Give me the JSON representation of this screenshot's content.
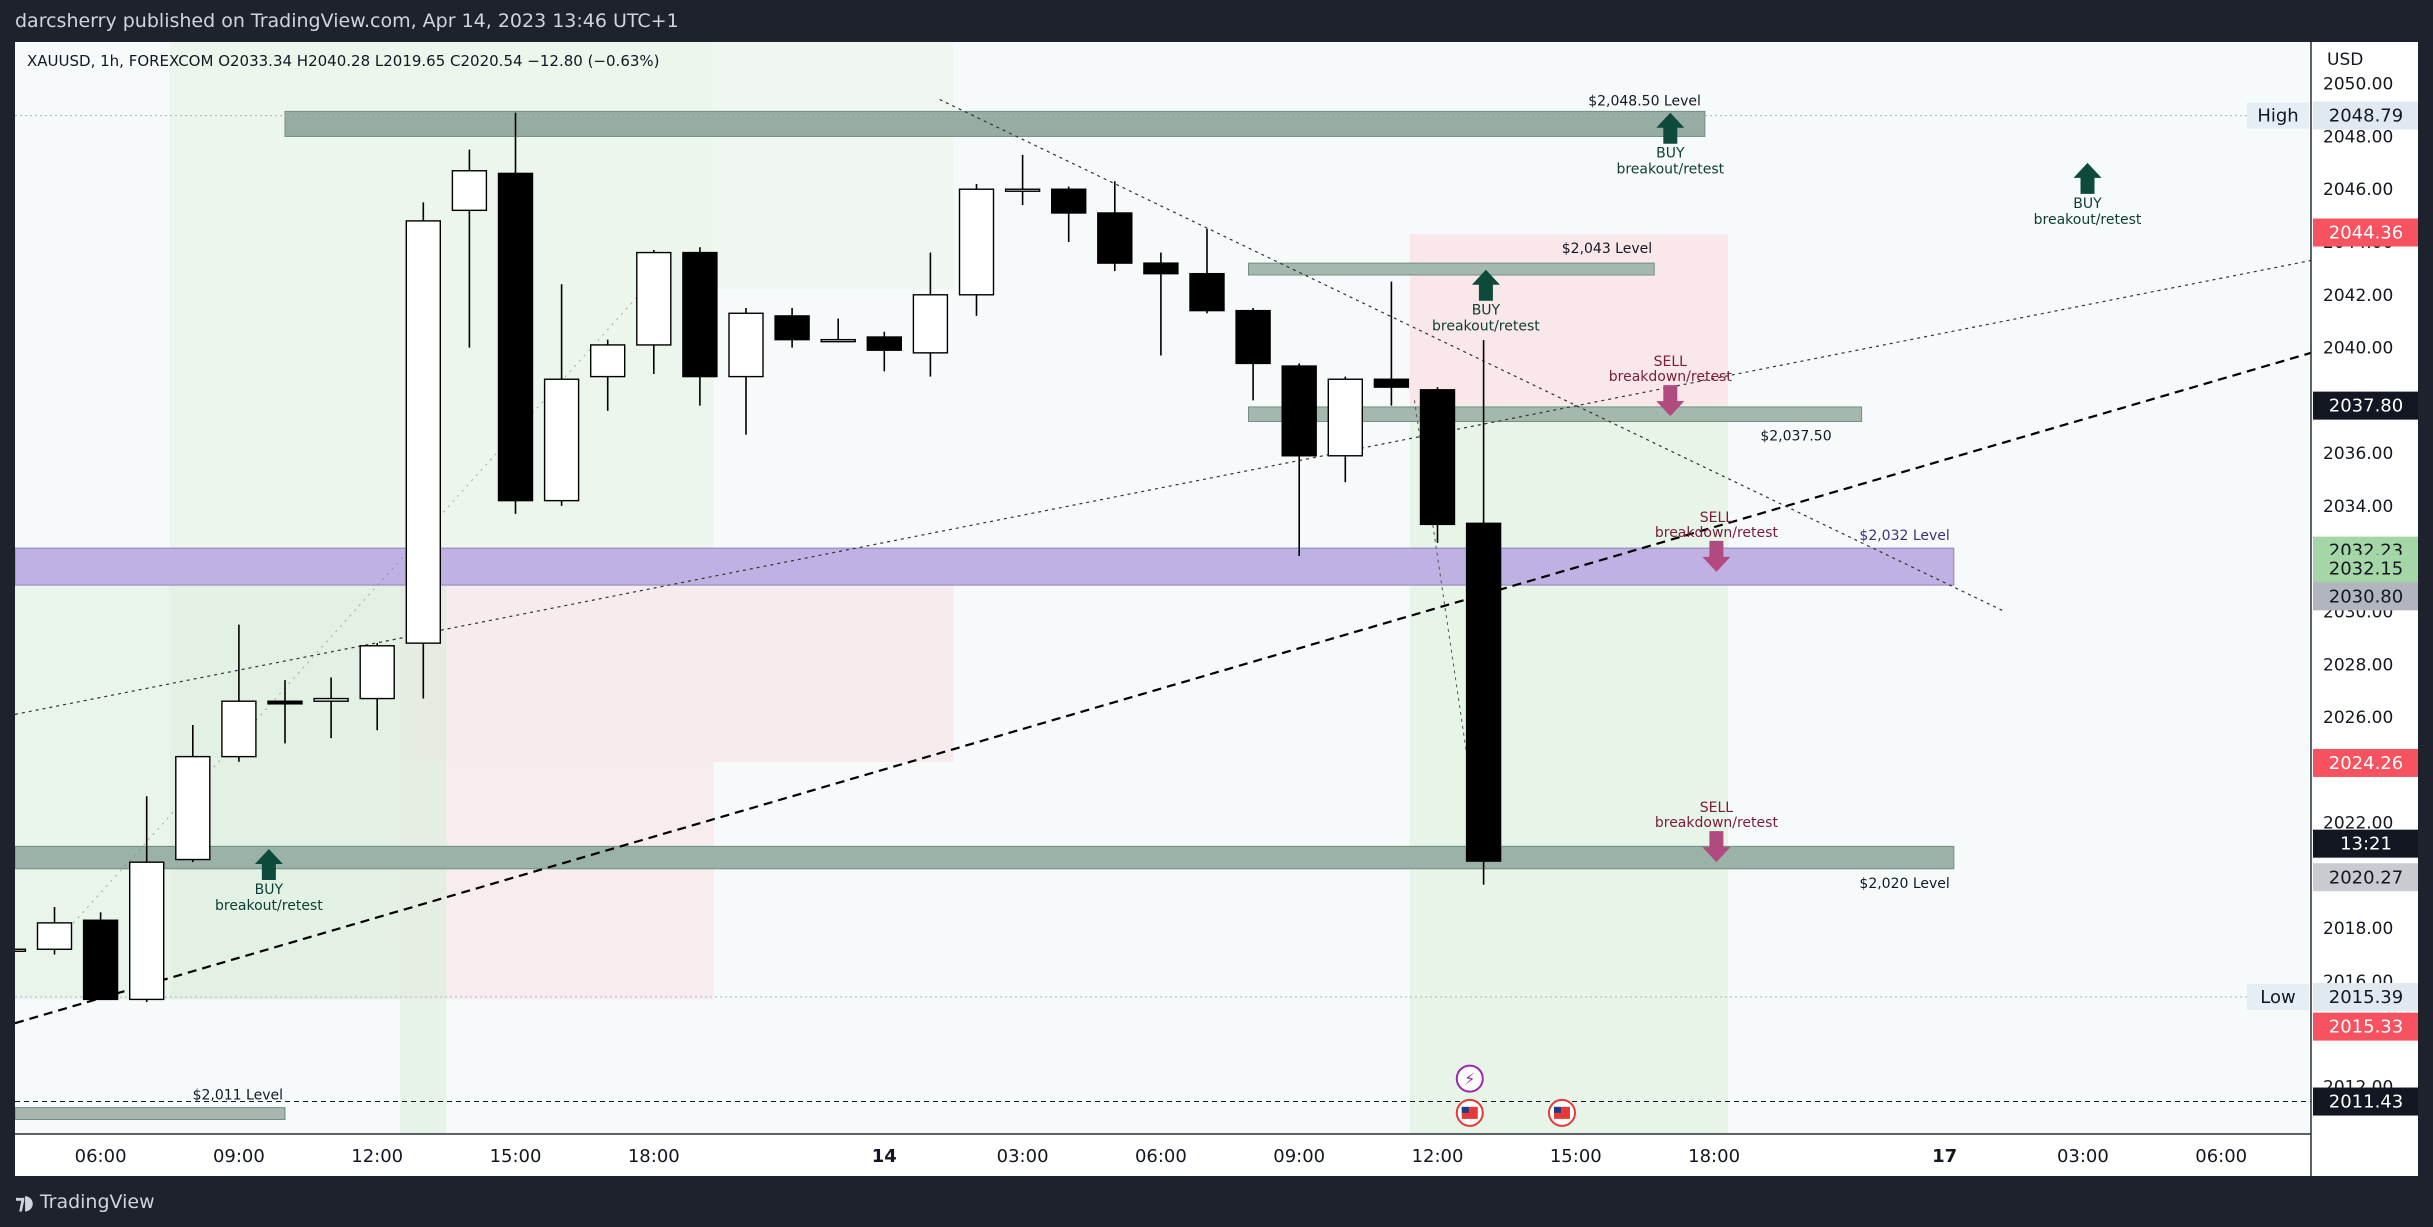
{
  "header": {
    "published": "darcsherry published on TradingView.com, Apr 14, 2023 13:46 UTC+1"
  },
  "footer": {
    "brand": "TradingView",
    "logo_icon": "tradingview-logo-icon"
  },
  "chart_data": {
    "type": "candlestick",
    "symbol_line": "XAUUSD, 1h, FOREXCOM  O2033.34  H2040.28  L2019.65  C2020.54  −12.80 (−0.63%)",
    "currency": "USD",
    "ylim": [
      2010.2,
      2051.2
    ],
    "y_ticks": [
      2012,
      2014,
      2016,
      2018,
      2020,
      2022,
      2024,
      2026,
      2028,
      2030,
      2032,
      2034,
      2036,
      2038,
      2040,
      2042,
      2044,
      2046,
      2048,
      2050
    ],
    "y_tick_labels": [
      "2012.00",
      "2014.00",
      "2016.00",
      "2018.00",
      "2020.00",
      "2022.00",
      "2024.00",
      "2026.00",
      "2028.00",
      "2030.00",
      "2032.00",
      "2034.00",
      "2036.00",
      "2038.00",
      "2040.00",
      "2042.00",
      "2044.00",
      "2046.00",
      "2048.00",
      "2050.00"
    ],
    "x_ticks": [
      {
        "i": 1,
        "label": "06:00"
      },
      {
        "i": 4,
        "label": "09:00"
      },
      {
        "i": 7,
        "label": "12:00"
      },
      {
        "i": 10,
        "label": "15:00"
      },
      {
        "i": 13,
        "label": "18:00"
      },
      {
        "i": 18,
        "label": "14"
      },
      {
        "i": 21,
        "label": "03:00"
      },
      {
        "i": 24,
        "label": "06:00"
      },
      {
        "i": 27,
        "label": "09:00"
      },
      {
        "i": 30,
        "label": "12:00"
      },
      {
        "i": 33,
        "label": "15:00"
      },
      {
        "i": 36,
        "label": "18:00"
      },
      {
        "i": 41,
        "label": "17"
      },
      {
        "i": 44,
        "label": "03:00"
      },
      {
        "i": 47,
        "label": "06:00"
      }
    ],
    "candles": [
      {
        "i": -1,
        "o": 2017.2,
        "h": 2017.6,
        "l": 2016.9,
        "c": 2017.2
      },
      {
        "i": 0,
        "o": 2017.2,
        "h": 2018.8,
        "l": 2017.0,
        "c": 2018.2
      },
      {
        "i": 1,
        "o": 2018.3,
        "h": 2018.6,
        "l": 2015.3,
        "c": 2015.3
      },
      {
        "i": 2,
        "o": 2015.3,
        "h": 2023.0,
        "l": 2015.2,
        "c": 2020.5
      },
      {
        "i": 3,
        "o": 2020.6,
        "h": 2025.7,
        "l": 2020.5,
        "c": 2024.5
      },
      {
        "i": 4,
        "o": 2024.5,
        "h": 2029.5,
        "l": 2024.3,
        "c": 2026.6
      },
      {
        "i": 5,
        "o": 2026.6,
        "h": 2027.4,
        "l": 2025.0,
        "c": 2026.5
      },
      {
        "i": 6,
        "o": 2026.6,
        "h": 2027.5,
        "l": 2025.2,
        "c": 2026.7
      },
      {
        "i": 7,
        "o": 2026.7,
        "h": 2028.8,
        "l": 2025.5,
        "c": 2028.7
      },
      {
        "i": 8,
        "o": 2028.8,
        "h": 2045.5,
        "l": 2026.7,
        "c": 2044.8
      },
      {
        "i": 9,
        "o": 2045.2,
        "h": 2047.5,
        "l": 2040.0,
        "c": 2046.7
      },
      {
        "i": 10,
        "o": 2046.6,
        "h": 2048.9,
        "l": 2033.7,
        "c": 2034.2
      },
      {
        "i": 11,
        "o": 2034.2,
        "h": 2042.4,
        "l": 2034.0,
        "c": 2038.8
      },
      {
        "i": 12,
        "o": 2038.9,
        "h": 2040.3,
        "l": 2037.6,
        "c": 2040.1
      },
      {
        "i": 13,
        "o": 2040.1,
        "h": 2043.7,
        "l": 2039.0,
        "c": 2043.6
      },
      {
        "i": 14,
        "o": 2043.6,
        "h": 2043.8,
        "l": 2037.8,
        "c": 2038.9
      },
      {
        "i": 15,
        "o": 2038.9,
        "h": 2041.5,
        "l": 2036.7,
        "c": 2041.3
      },
      {
        "i": 16,
        "o": 2041.2,
        "h": 2041.5,
        "l": 2040.0,
        "c": 2040.3
      },
      {
        "i": 17,
        "o": 2040.3,
        "h": 2041.1,
        "l": 2040.2,
        "c": 2040.3
      },
      {
        "i": 18,
        "o": 2040.4,
        "h": 2040.6,
        "l": 2039.1,
        "c": 2039.9
      },
      {
        "i": 19,
        "o": 2039.8,
        "h": 2043.6,
        "l": 2038.9,
        "c": 2042.0
      },
      {
        "i": 20,
        "o": 2042.0,
        "h": 2046.2,
        "l": 2041.2,
        "c": 2046.0
      },
      {
        "i": 21,
        "o": 2046.0,
        "h": 2047.3,
        "l": 2045.4,
        "c": 2046.0
      },
      {
        "i": 22,
        "o": 2046.0,
        "h": 2046.1,
        "l": 2044.0,
        "c": 2045.1
      },
      {
        "i": 23,
        "o": 2045.1,
        "h": 2046.3,
        "l": 2042.9,
        "c": 2043.2
      },
      {
        "i": 24,
        "o": 2043.2,
        "h": 2043.6,
        "l": 2039.7,
        "c": 2042.8
      },
      {
        "i": 25,
        "o": 2042.8,
        "h": 2044.5,
        "l": 2041.3,
        "c": 2041.4
      },
      {
        "i": 26,
        "o": 2041.4,
        "h": 2041.5,
        "l": 2038.0,
        "c": 2039.4
      },
      {
        "i": 27,
        "o": 2039.3,
        "h": 2039.4,
        "l": 2032.1,
        "c": 2035.9
      },
      {
        "i": 28,
        "o": 2035.9,
        "h": 2038.9,
        "l": 2034.9,
        "c": 2038.8
      },
      {
        "i": 29,
        "o": 2038.8,
        "h": 2042.5,
        "l": 2037.8,
        "c": 2038.5
      },
      {
        "i": 30,
        "o": 2038.4,
        "h": 2038.5,
        "l": 2032.6,
        "c": 2033.3
      },
      {
        "i": 31,
        "o": 2033.34,
        "h": 2040.28,
        "l": 2019.65,
        "c": 2020.54
      }
    ],
    "levels": [
      {
        "name": "$2,048.50 Level",
        "price": 2048.5
      },
      {
        "name": "$2,043 Level",
        "price": 2043.0
      },
      {
        "name": "$2,037.50",
        "price": 2037.5
      },
      {
        "name": "$2,032 Level",
        "price": 2031.5
      },
      {
        "name": "$2,020 Level",
        "price": 2020.5
      },
      {
        "name": "$2,011 Level",
        "price": 2011.0
      }
    ],
    "signals": [
      {
        "label1": "BUY",
        "label2": "breakout/retest",
        "dir": "up"
      },
      {
        "label1": "BUY",
        "label2": "breakout/retest",
        "dir": "up"
      },
      {
        "label1": "BUY",
        "label2": "breakout/retest",
        "dir": "up"
      },
      {
        "label1": "BUY",
        "label2": "breakout/retest",
        "dir": "up"
      },
      {
        "label1": "SELL",
        "label2": "breakdown/retest",
        "dir": "down"
      },
      {
        "label1": "SELL",
        "label2": "breakdown/retest",
        "dir": "down"
      },
      {
        "label1": "SELL",
        "label2": "breakdown/retest",
        "dir": "down"
      }
    ],
    "price_tags": [
      {
        "text": "2048.79",
        "bg": "#e1e9f0",
        "fg": "#131722",
        "side_label": "High"
      },
      {
        "text": "2044.36",
        "bg": "#f7525f",
        "fg": "#ffffff"
      },
      {
        "text": "2037.80",
        "bg": "#131722",
        "fg": "#ffffff"
      },
      {
        "text": "2032.23",
        "bg": "#a5d6a7",
        "fg": "#131722"
      },
      {
        "text": "2032.15",
        "bg": "#a5d6a7",
        "fg": "#131722"
      },
      {
        "text": "2030.80",
        "bg": "#b2b5be",
        "fg": "#131722"
      },
      {
        "text": "2024.26",
        "bg": "#f7525f",
        "fg": "#ffffff"
      },
      {
        "text": "13:21",
        "bg": "#131722",
        "fg": "#ffffff"
      },
      {
        "text": "2020.27",
        "bg": "#c9cbd1",
        "fg": "#131722"
      },
      {
        "text": "2015.39",
        "bg": "#e1e9f0",
        "fg": "#131722",
        "side_label": "Low"
      },
      {
        "text": "2015.33",
        "bg": "#f7525f",
        "fg": "#ffffff"
      },
      {
        "text": "2011.43",
        "bg": "#131722",
        "fg": "#ffffff"
      }
    ],
    "colors": {
      "up_body": "#ffffff",
      "down_body": "#000000",
      "wick": "#000000",
      "level_band": "#8fa89d",
      "purple_band": "#b4a7d6",
      "buy_arrow": "#0d4a3b",
      "sell_arrow": "#b04a7f"
    },
    "events": [
      {
        "icon": "lightning-icon"
      },
      {
        "icon": "us-flag-icon"
      },
      {
        "icon": "us-flag-icon"
      }
    ]
  }
}
